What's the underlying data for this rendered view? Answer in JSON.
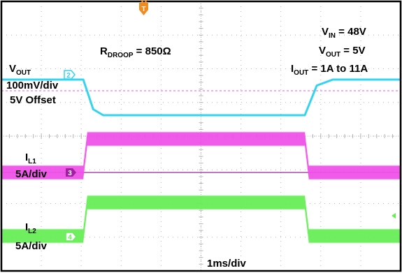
{
  "annotations": {
    "rdroop_main": "R",
    "rdroop_sub": "DROOP",
    "rdroop_value": " = 850Ω",
    "vin_main": "V",
    "vin_sub": "IN",
    "vin_value": " = 48V",
    "vout_main": "V",
    "vout_sub": "OUT",
    "vout_value": " = 5V",
    "iout_main": "I",
    "iout_sub": "OUT",
    "iout_value": " = 1A to 11A",
    "timebase": "1ms/div"
  },
  "channel_labels": {
    "ch2_main": "V",
    "ch2_sub": "OUT",
    "ch2_scale": "100mV/div",
    "ch2_offset": "5V Offset",
    "ch3_main": "I",
    "ch3_sub": "L1",
    "ch3_scale": "5A/div",
    "ch4_main": "I",
    "ch4_sub": "L2",
    "ch4_scale": "5A/div"
  },
  "markers": {
    "ch2": "2",
    "ch3": "3",
    "ch4": "4",
    "trigger": "T"
  },
  "colors": {
    "ch2": "#33d4f0",
    "ch3": "#f050e8",
    "ch4": "#66ee55",
    "trigger": "#f08c1e",
    "grid": "#b4b4b4",
    "frame": "#000000"
  },
  "chart_data": {
    "type": "line",
    "title": "",
    "x_unit": "ms",
    "x_divisions": 10,
    "y_divisions": 8,
    "xlim": [
      0,
      10
    ],
    "transient": {
      "load_step_up_ms": 2.05,
      "load_step_down_ms": 7.6
    },
    "series": [
      {
        "name": "VOUT",
        "channel": "2",
        "kind": "voltage",
        "x": [
          0,
          2.05,
          2.3,
          2.55,
          7.6,
          7.9,
          8.3,
          10
        ],
        "y": [
          5.0,
          5.0,
          4.85,
          4.82,
          4.82,
          4.97,
          5.0,
          5.0
        ],
        "ripple": 0.0
      },
      {
        "name": "IL1",
        "channel": "3",
        "kind": "current",
        "x": [
          0,
          2.05,
          2.15,
          7.6,
          7.7,
          10
        ],
        "y": [
          0.5,
          0.5,
          5.5,
          5.5,
          0.5,
          0.5
        ],
        "ripple": 2.0
      },
      {
        "name": "IL2",
        "channel": "4",
        "kind": "current",
        "x": [
          0,
          2.05,
          2.15,
          7.6,
          7.7,
          10
        ],
        "y": [
          0.5,
          0.5,
          5.5,
          5.5,
          0.5,
          0.5
        ],
        "ripple": 2.0
      }
    ]
  }
}
